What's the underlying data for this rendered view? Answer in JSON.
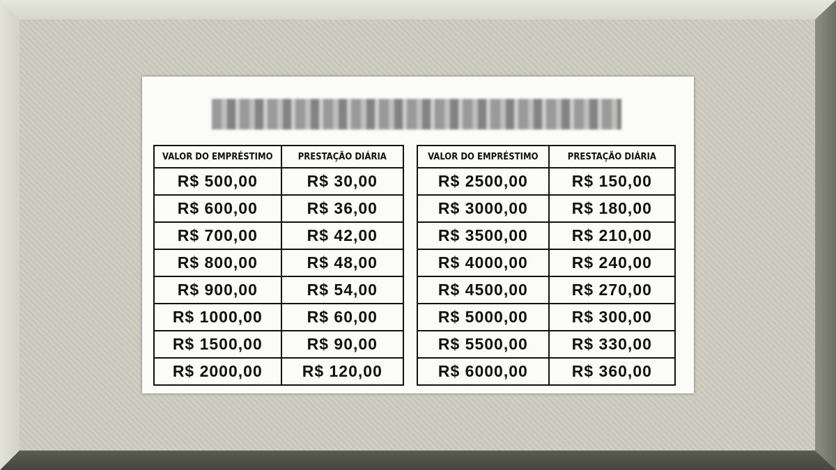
{
  "title_obscured": true,
  "tables": [
    {
      "headers": [
        "VALOR DO EMPRÉSTIMO",
        "PRESTAÇÃO DIÁRIA"
      ],
      "rows": [
        [
          "R$ 500,00",
          "R$ 30,00"
        ],
        [
          "R$ 600,00",
          "R$ 36,00"
        ],
        [
          "R$ 700,00",
          "R$ 42,00"
        ],
        [
          "R$ 800,00",
          "R$ 48,00"
        ],
        [
          "R$ 900,00",
          "R$ 54,00"
        ],
        [
          "R$ 1000,00",
          "R$ 60,00"
        ],
        [
          "R$ 1500,00",
          "R$ 90,00"
        ],
        [
          "R$ 2000,00",
          "R$ 120,00"
        ]
      ]
    },
    {
      "headers": [
        "VALOR DO EMPRÉSTIMO",
        "PRESTAÇÃO DIÁRIA"
      ],
      "rows": [
        [
          "R$ 2500,00",
          "R$ 150,00"
        ],
        [
          "R$ 3000,00",
          "R$ 180,00"
        ],
        [
          "R$ 3500,00",
          "R$ 210,00"
        ],
        [
          "R$ 4000,00",
          "R$ 240,00"
        ],
        [
          "R$ 4500,00",
          "R$ 270,00"
        ],
        [
          "R$ 5000,00",
          "R$ 300,00"
        ],
        [
          "R$ 5500,00",
          "R$ 330,00"
        ],
        [
          "R$ 6000,00",
          "R$ 360,00"
        ]
      ]
    }
  ]
}
